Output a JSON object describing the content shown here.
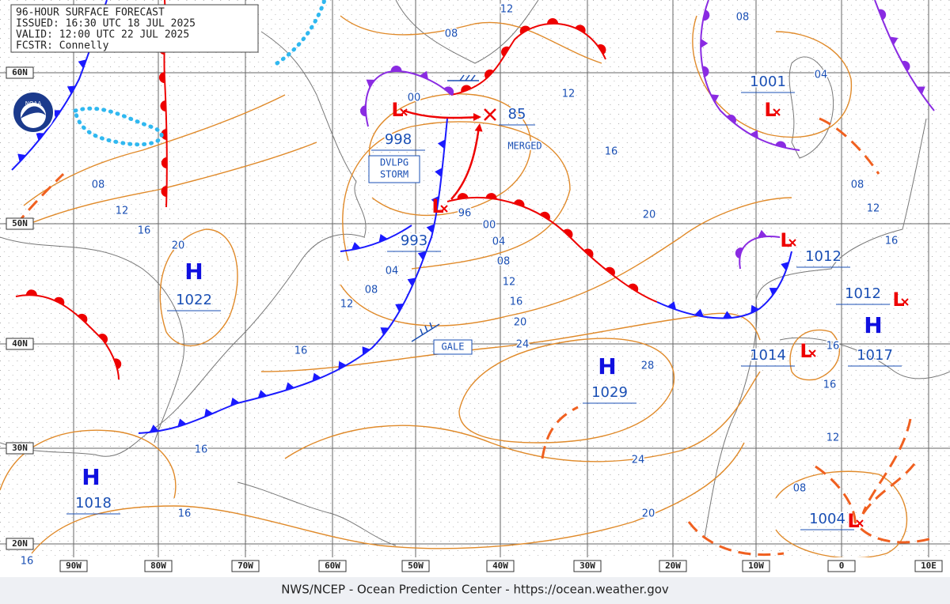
{
  "header": {
    "title": "96-HOUR SURFACE FORECAST",
    "issued": "ISSUED: 16:30 UTC 18 JUL 2025",
    "valid": "VALID: 12:00 UTC 22 JUL 2025",
    "forecaster": "FCSTR: Connelly"
  },
  "logo": "NOAA",
  "latitude_labels": [
    "60N",
    "50N",
    "40N",
    "30N",
    "20N"
  ],
  "longitude_labels": [
    "90W",
    "80W",
    "70W",
    "60W",
    "50W",
    "40W",
    "30W",
    "20W",
    "10W",
    "0",
    "10E"
  ],
  "pressure_centers": [
    {
      "symbol": "H",
      "pressure": "1022"
    },
    {
      "symbol": "L",
      "pressure": "998"
    },
    {
      "symbol": "L",
      "pressure": "993"
    },
    {
      "symbol": "L",
      "pressure": "1001"
    },
    {
      "symbol": "L",
      "pressure": "1012"
    },
    {
      "symbol": "L",
      "pressure": "1012"
    },
    {
      "symbol": "H",
      "pressure": "1017"
    },
    {
      "symbol": "L",
      "pressure": "1014"
    },
    {
      "symbol": "H",
      "pressure": "1029"
    },
    {
      "symbol": "H",
      "pressure": "1018"
    },
    {
      "symbol": "L",
      "pressure": "1004"
    }
  ],
  "merged_center": "85",
  "isobar_labels": [
    "12",
    "08",
    "08",
    "04",
    "00",
    "12",
    "16",
    "08",
    "12",
    "16",
    "20",
    "08",
    "12",
    "20",
    "96",
    "00",
    "04",
    "08",
    "12",
    "16",
    "20",
    "24",
    "04",
    "08",
    "12",
    "16",
    "16",
    "16",
    "28",
    "16",
    "12",
    "24",
    "16",
    "16",
    "08",
    "20",
    "16"
  ],
  "annotations": {
    "storm": [
      "DVLPG",
      "STORM"
    ],
    "gale": "GALE",
    "merged": "MERGED"
  },
  "footer": "NWS/NCEP - Ocean Prediction Center - https://ocean.weather.gov"
}
